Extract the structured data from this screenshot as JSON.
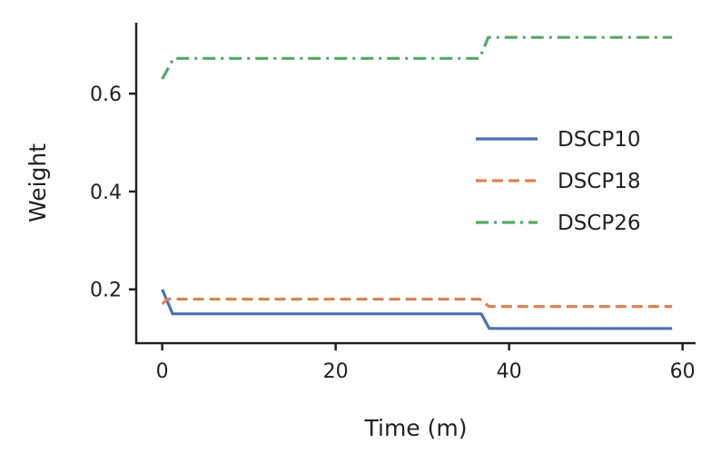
{
  "chart_data": {
    "type": "line",
    "title": "",
    "xlabel": "Time (m)",
    "ylabel": "Weight",
    "xlim": [
      -3,
      61.5
    ],
    "ylim": [
      0.09,
      0.745
    ],
    "xticks": [
      0,
      20,
      40,
      60
    ],
    "xtick_labels": [
      "0",
      "20",
      "40",
      "60"
    ],
    "yticks": [
      0.2,
      0.4,
      0.6
    ],
    "ytick_labels": [
      "0.2",
      "0.4",
      "0.6"
    ],
    "grid": false,
    "legend_position": "center-right",
    "series": [
      {
        "name": "DSCP10",
        "color": "#4c72b0",
        "style": "solid",
        "x": [
          0,
          1.2,
          36.8,
          37.7,
          58.8
        ],
        "y": [
          0.2,
          0.15,
          0.15,
          0.12,
          0.12
        ]
      },
      {
        "name": "DSCP18",
        "color": "#dd8452",
        "style": "dashed",
        "x": [
          0,
          0.6,
          36.6,
          37.7,
          58.8
        ],
        "y": [
          0.17,
          0.18,
          0.18,
          0.165,
          0.165
        ]
      },
      {
        "name": "DSCP26",
        "color": "#55a868",
        "style": "dashdot",
        "x": [
          0,
          1.3,
          36.6,
          37.6,
          58.8
        ],
        "y": [
          0.63,
          0.672,
          0.672,
          0.715,
          0.715
        ]
      }
    ]
  }
}
